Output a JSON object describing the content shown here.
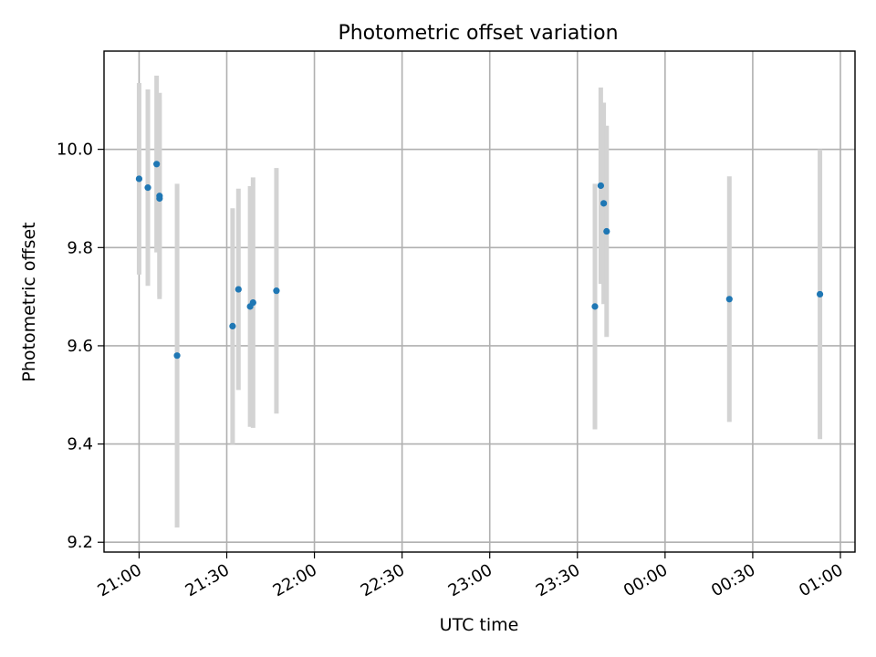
{
  "chart_data": {
    "type": "scatter",
    "title": "Photometric offset variation",
    "xlabel": "UTC time",
    "ylabel": "Photometric offset",
    "x_tick_labels": [
      "21:00",
      "21:30",
      "22:00",
      "22:30",
      "23:00",
      "23:30",
      "00:00",
      "00:30",
      "01:00"
    ],
    "y_ticks": [
      9.2,
      9.4,
      9.6,
      9.8,
      10.0
    ],
    "y_tick_labels": [
      "9.2",
      "9.4",
      "9.6",
      "9.8",
      "10.0"
    ],
    "xlim": [
      "20:48",
      "01:05"
    ],
    "ylim": [
      9.18,
      10.2
    ],
    "grid": true,
    "colors": {
      "points": "#1f77b4",
      "errorbars": "#d3d3d3"
    },
    "points": [
      {
        "x": "21:00",
        "y": 9.94,
        "yerr": 0.195
      },
      {
        "x": "21:03",
        "y": 9.922,
        "yerr": 0.2
      },
      {
        "x": "21:06",
        "y": 9.97,
        "yerr": 0.18
      },
      {
        "x": "21:07",
        "y": 9.905,
        "yerr": 0.21
      },
      {
        "x": "21:07",
        "y": 9.9,
        "yerr": 0.2
      },
      {
        "x": "21:13",
        "y": 9.58,
        "yerr": 0.35
      },
      {
        "x": "21:32",
        "y": 9.64,
        "yerr": 0.24
      },
      {
        "x": "21:34",
        "y": 9.715,
        "yerr": 0.205
      },
      {
        "x": "21:38",
        "y": 9.68,
        "yerr": 0.245
      },
      {
        "x": "21:39",
        "y": 9.688,
        "yerr": 0.255
      },
      {
        "x": "21:47",
        "y": 9.712,
        "yerr": 0.25
      },
      {
        "x": "23:36",
        "y": 9.68,
        "yerr": 0.25
      },
      {
        "x": "23:38",
        "y": 9.926,
        "yerr": 0.2
      },
      {
        "x": "23:39",
        "y": 9.89,
        "yerr": 0.205
      },
      {
        "x": "23:40",
        "y": 9.833,
        "yerr": 0.215
      },
      {
        "x": "00:22",
        "y": 9.695,
        "yerr": 0.25
      },
      {
        "x": "00:53",
        "y": 9.705,
        "yerr": 0.295
      }
    ]
  }
}
